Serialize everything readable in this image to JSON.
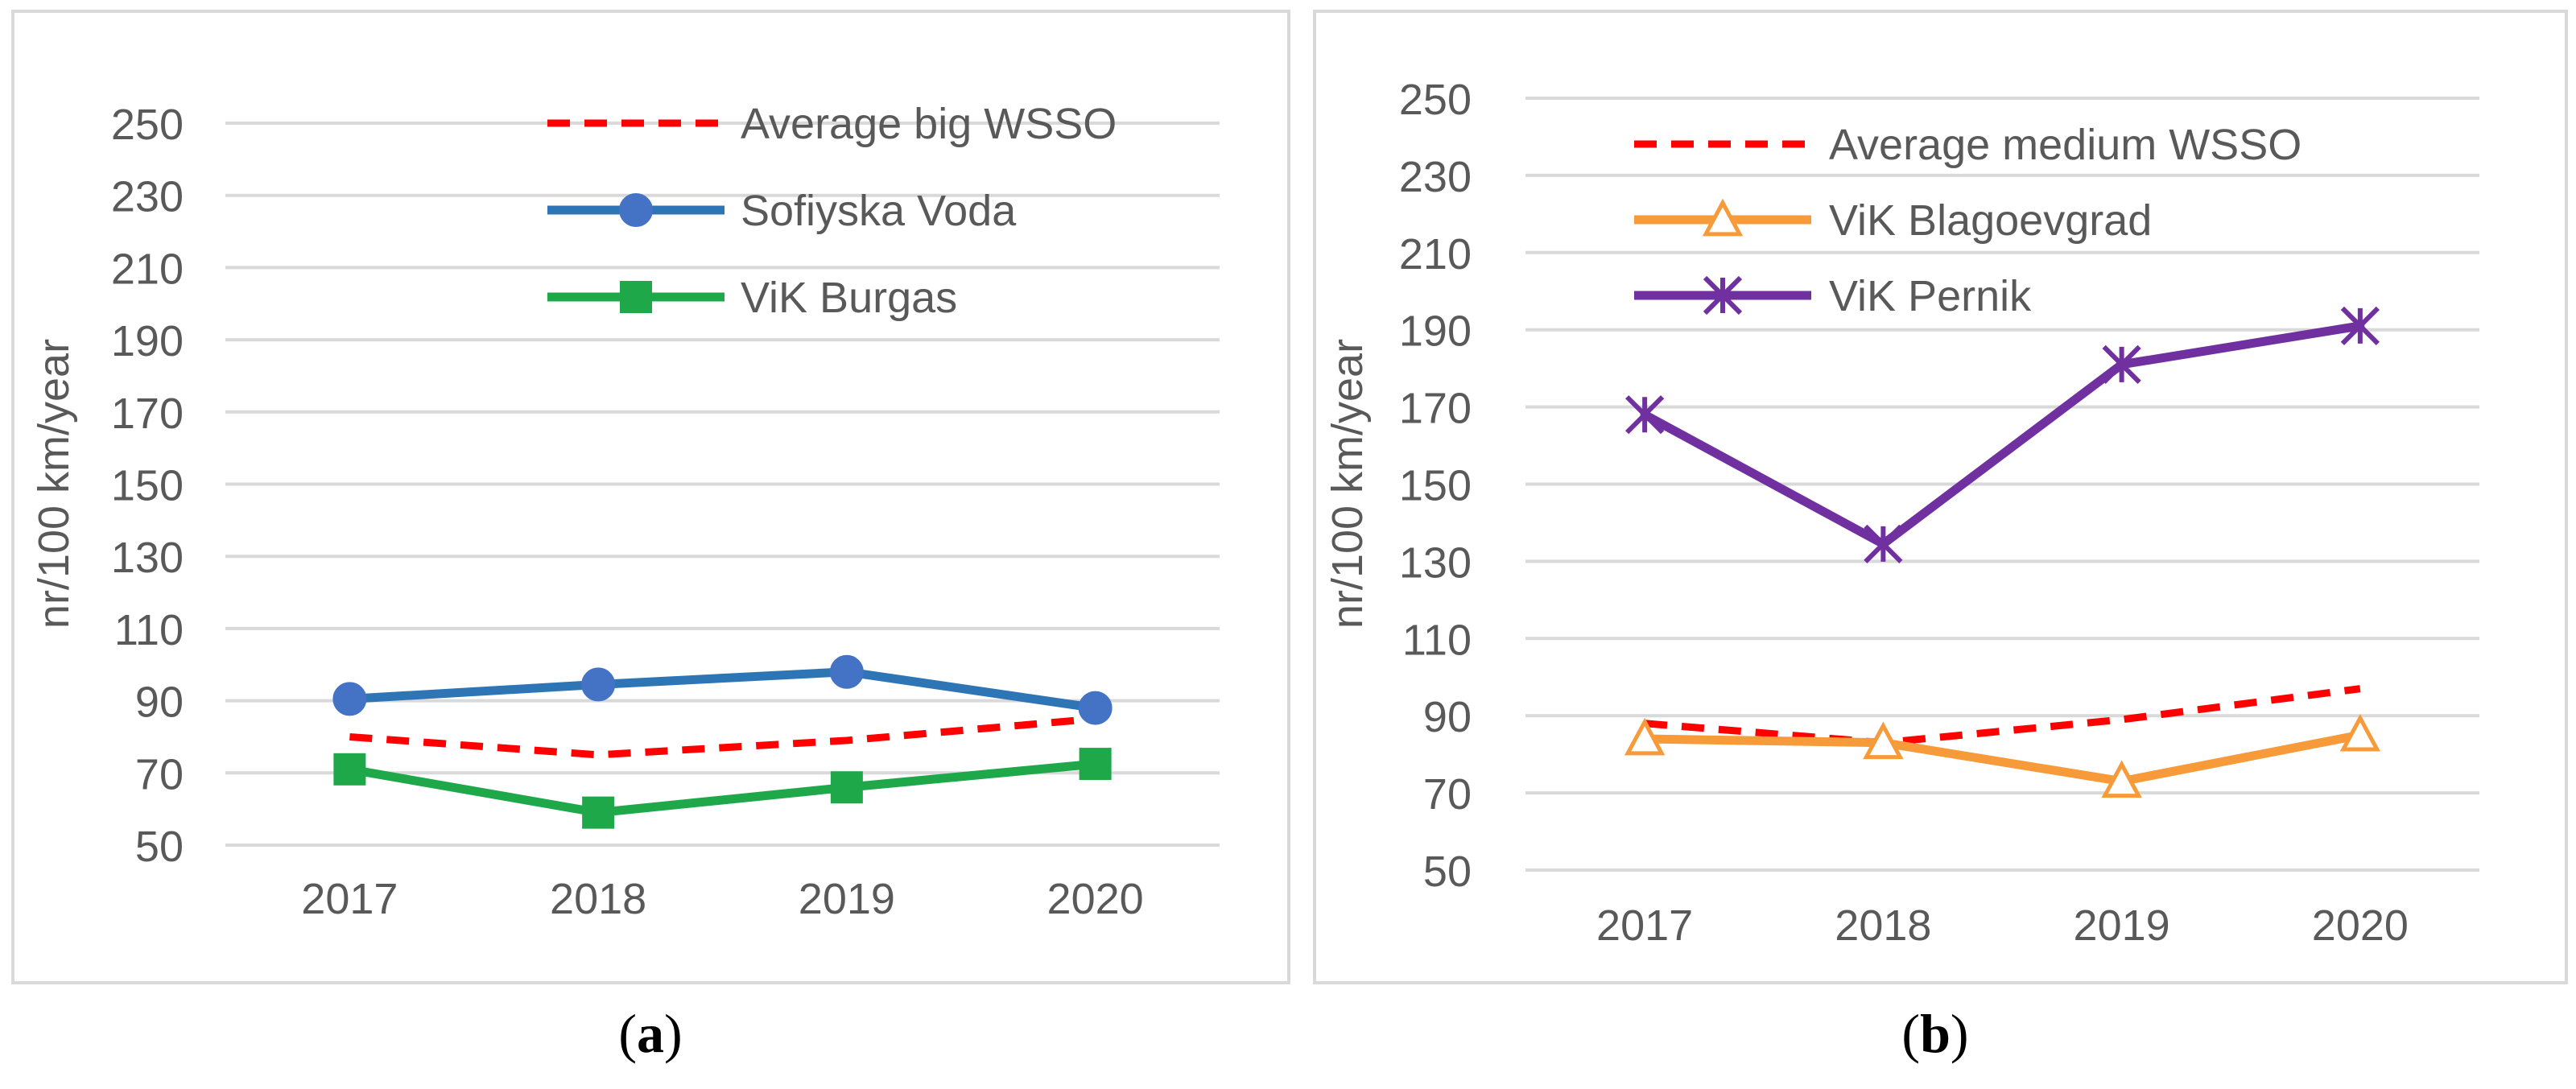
{
  "figures": [
    {
      "caption_letter": "a",
      "caption_open": "(",
      "caption_close": ")"
    },
    {
      "caption_letter": "b",
      "caption_open": "(",
      "caption_close": ")"
    }
  ],
  "chart_data": [
    {
      "type": "line",
      "panel": "a",
      "categories": [
        "2017",
        "2018",
        "2019",
        "2020"
      ],
      "ylabel": "nr/100 km/year",
      "xlabel": "",
      "ylim": [
        50,
        250
      ],
      "yticks": [
        "50",
        "70",
        "90",
        "110",
        "130",
        "150",
        "170",
        "190",
        "210",
        "230",
        "250"
      ],
      "grid": true,
      "legend_position": "top-right",
      "series": [
        {
          "name": "Average big WSSO",
          "values": [
            80,
            75,
            79,
            85
          ],
          "color": "#FF0000",
          "dash": true,
          "marker": "none"
        },
        {
          "name": "Sofiyska Voda",
          "values": [
            90.5,
            94.5,
            98,
            88
          ],
          "color": "#2E75B6",
          "dash": false,
          "marker": "circle",
          "marker_color": "#4472C4"
        },
        {
          "name": "ViK Burgas",
          "values": [
            71,
            59,
            66,
            72.5
          ],
          "color": "#1FA84A",
          "dash": false,
          "marker": "square",
          "marker_color": "#1FA84A"
        }
      ]
    },
    {
      "type": "line",
      "panel": "b",
      "categories": [
        "2017",
        "2018",
        "2019",
        "2020"
      ],
      "ylabel": "nr/100 km/year",
      "xlabel": "",
      "ylim": [
        50,
        250
      ],
      "yticks": [
        "50",
        "70",
        "90",
        "110",
        "130",
        "150",
        "170",
        "190",
        "210",
        "230",
        "250"
      ],
      "grid": true,
      "legend_position": "top-left",
      "series": [
        {
          "name": "Average medium WSSO",
          "values": [
            88,
            83,
            89,
            97
          ],
          "color": "#FF0000",
          "dash": true,
          "marker": "none"
        },
        {
          "name": "ViK Blagoevgrad",
          "values": [
            84,
            83,
            73,
            85
          ],
          "color": "#F79A3A",
          "dash": false,
          "marker": "triangle",
          "marker_color": "#F79A3A"
        },
        {
          "name": "ViK Pernik",
          "values": [
            168,
            134.5,
            181,
            191
          ],
          "color": "#7030A0",
          "dash": false,
          "marker": "star",
          "marker_color": "#7030A0"
        }
      ]
    }
  ]
}
